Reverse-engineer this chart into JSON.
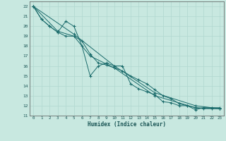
{
  "xlabel": "Humidex (Indice chaleur)",
  "xlim": [
    -0.5,
    23.5
  ],
  "ylim": [
    11,
    22.5
  ],
  "yticks": [
    11,
    12,
    13,
    14,
    15,
    16,
    17,
    18,
    19,
    20,
    21,
    22
  ],
  "xticks": [
    0,
    1,
    2,
    3,
    4,
    5,
    6,
    7,
    8,
    9,
    10,
    11,
    12,
    13,
    14,
    15,
    16,
    17,
    18,
    19,
    20,
    21,
    22,
    23
  ],
  "bg_color": "#c8e8e0",
  "grid_color": "#b0d8d0",
  "line_color": "#1a6b6b",
  "series": [
    {
      "x": [
        0,
        1,
        2,
        3,
        4,
        5,
        6,
        7,
        8,
        9,
        10,
        11,
        12,
        13,
        14,
        15,
        16,
        17,
        18,
        19,
        20,
        21,
        22,
        23
      ],
      "y": [
        22.0,
        20.7,
        20.0,
        19.4,
        20.5,
        20.0,
        18.0,
        15.0,
        16.0,
        16.3,
        16.0,
        16.0,
        14.2,
        13.7,
        13.4,
        13.1,
        12.4,
        12.3,
        12.0,
        12.0,
        11.6,
        11.8,
        11.8,
        11.8
      ]
    },
    {
      "x": [
        0,
        1,
        2,
        3,
        4,
        5,
        6,
        7,
        8,
        9,
        10,
        11,
        12,
        13,
        14,
        15,
        16,
        17,
        18,
        19,
        20,
        21,
        22,
        23
      ],
      "y": [
        22.0,
        20.7,
        20.0,
        19.4,
        19.0,
        19.0,
        18.5,
        17.2,
        16.3,
        16.1,
        15.8,
        15.5,
        15.0,
        14.6,
        14.2,
        13.6,
        13.0,
        12.7,
        12.2,
        12.0,
        11.8,
        11.7,
        11.7,
        11.7
      ]
    },
    {
      "x": [
        0,
        5,
        10,
        15,
        20,
        23
      ],
      "y": [
        22.0,
        19.2,
        16.0,
        13.3,
        12.0,
        11.7
      ]
    },
    {
      "x": [
        0,
        3,
        5,
        7,
        10,
        15,
        20,
        23
      ],
      "y": [
        22.0,
        19.5,
        19.0,
        17.0,
        15.8,
        13.0,
        11.8,
        11.7
      ]
    }
  ]
}
